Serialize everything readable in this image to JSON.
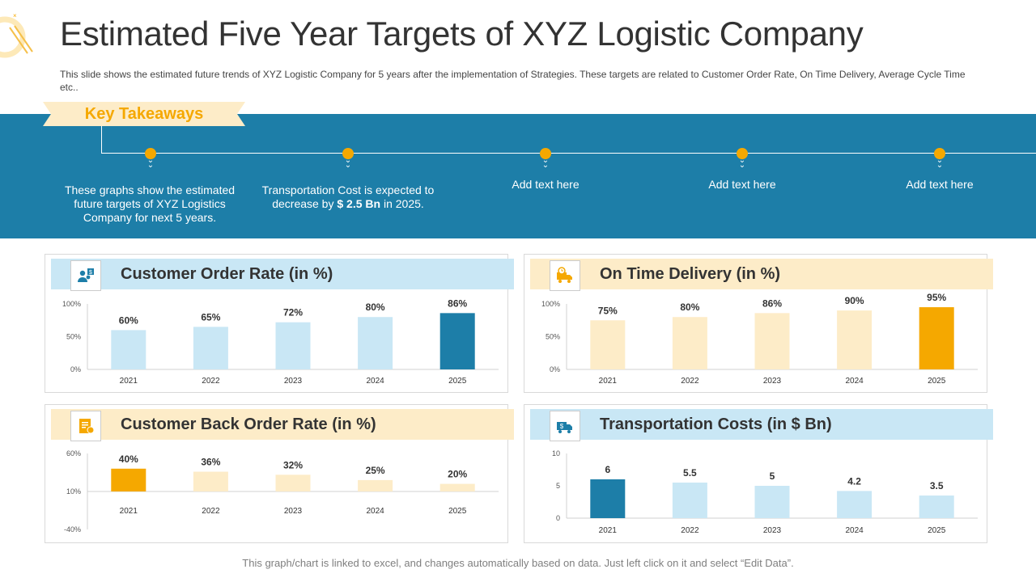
{
  "header": {
    "title": "Estimated Five Year Targets of XYZ Logistic Company",
    "subtitle": "This slide shows the estimated future trends of XYZ Logistic Company for 5 years after the implementation of Strategies. These targets are related to Customer Order Rate, On Time Delivery, Average Cycle Time etc.."
  },
  "takeaways": {
    "label": "Key Takeaways",
    "items": [
      {
        "text_pre": "These graphs show the estimated future targets of XYZ Logistics Company for next 5 years.",
        "bold": "",
        "text_post": ""
      },
      {
        "text_pre": "Transportation Cost is expected to decrease by ",
        "bold": "$ 2.5 Bn",
        "text_post": " in 2025."
      },
      {
        "text_pre": "Add text here",
        "bold": "",
        "text_post": ""
      },
      {
        "text_pre": "Add text here",
        "bold": "",
        "text_post": ""
      },
      {
        "text_pre": "Add text here",
        "bold": "",
        "text_post": ""
      }
    ]
  },
  "colors": {
    "band": "#1d7ea8",
    "accent": "#f5a800",
    "light_blue": "#c9e7f5",
    "dark_blue": "#1d7ea8",
    "cream": "#fdecc8",
    "orange": "#f5a800"
  },
  "chart_data": [
    {
      "id": "order",
      "type": "bar",
      "title": "Customer Order Rate (in %)",
      "icon": "customer-icon",
      "categories": [
        "2021",
        "2022",
        "2023",
        "2024",
        "2025"
      ],
      "values": [
        60,
        65,
        72,
        80,
        86
      ],
      "labels": [
        "60%",
        "65%",
        "72%",
        "80%",
        "86%"
      ],
      "highlight_index": 4,
      "yticks": [
        0,
        50,
        100
      ],
      "ytick_labels": [
        "0%",
        "50%",
        "100%"
      ],
      "ylim": [
        0,
        100
      ],
      "bar_color": "#c9e7f5",
      "highlight_color": "#1d7ea8"
    },
    {
      "id": "delivery",
      "type": "bar",
      "title": "On Time Delivery (in %)",
      "icon": "delivery-truck-icon",
      "categories": [
        "2021",
        "2022",
        "2023",
        "2024",
        "2025"
      ],
      "values": [
        75,
        80,
        86,
        90,
        95
      ],
      "labels": [
        "75%",
        "80%",
        "86%",
        "90%",
        "95%"
      ],
      "highlight_index": 4,
      "yticks": [
        0,
        50,
        100
      ],
      "ytick_labels": [
        "0%",
        "50%",
        "100%"
      ],
      "ylim": [
        0,
        100
      ],
      "bar_color": "#fdecc8",
      "highlight_color": "#f5a800"
    },
    {
      "id": "backorder",
      "type": "bar",
      "title": "Customer Back Order Rate (in %)",
      "icon": "document-icon",
      "categories": [
        "2021",
        "2022",
        "2023",
        "2024",
        "2025"
      ],
      "values": [
        40,
        36,
        32,
        25,
        20
      ],
      "labels": [
        "40%",
        "36%",
        "32%",
        "25%",
        "20%"
      ],
      "highlight_index": 0,
      "yticks": [
        -40,
        10,
        60
      ],
      "ytick_labels": [
        "-40%",
        "10%",
        "60%"
      ],
      "ylim": [
        -40,
        60
      ],
      "bar_color": "#fdecc8",
      "highlight_color": "#f5a800"
    },
    {
      "id": "transport",
      "type": "bar",
      "title": "Transportation Costs (in $ Bn)",
      "icon": "money-truck-icon",
      "categories": [
        "2021",
        "2022",
        "2023",
        "2024",
        "2025"
      ],
      "values": [
        6,
        5.5,
        5,
        4.2,
        3.5
      ],
      "labels": [
        "6",
        "5.5",
        "5",
        "4.2",
        "3.5"
      ],
      "highlight_index": 0,
      "yticks": [
        0,
        5,
        10
      ],
      "ytick_labels": [
        "0",
        "5",
        "10"
      ],
      "ylim": [
        0,
        10
      ],
      "bar_color": "#c9e7f5",
      "highlight_color": "#1d7ea8"
    }
  ],
  "footer": {
    "note": "This graph/chart is linked to excel, and changes automatically based on data. Just left click on it and select “Edit Data”."
  }
}
